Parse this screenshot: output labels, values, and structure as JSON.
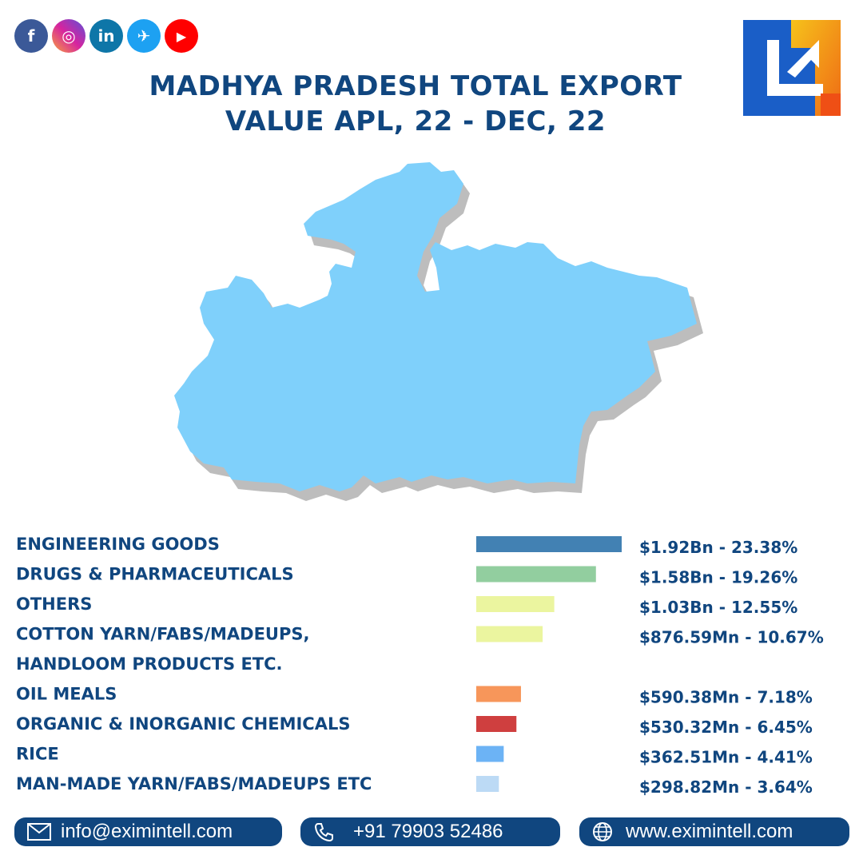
{
  "social": [
    {
      "name": "facebook",
      "glyph": "f",
      "color": "#3b5998"
    },
    {
      "name": "instagram",
      "glyph": "◎",
      "color": "#d6249f"
    },
    {
      "name": "linkedin",
      "glyph": "in",
      "color": "#0e76a8"
    },
    {
      "name": "twitter",
      "glyph": "✈",
      "color": "#1da1f2"
    },
    {
      "name": "youtube",
      "glyph": "▶",
      "color": "#ff0000"
    }
  ],
  "title_line1": "MADHYA PRADESH TOTAL EXPORT",
  "title_line2": "VALUE APL, 22 - DEC, 22",
  "chart_data": {
    "type": "bar",
    "orientation": "horizontal",
    "categories": [
      [
        "ENGINEERING GOODS"
      ],
      [
        "DRUGS & PHARMACEUTICALS"
      ],
      [
        "OTHERS"
      ],
      [
        "COTTON YARN/FABS/MADEUPS,",
        "HANDLOOM PRODUCTS ETC."
      ],
      [
        "OIL MEALS"
      ],
      [
        "ORGANIC & INORGANIC CHEMICALS"
      ],
      [
        "RICE"
      ],
      [
        "MAN-MADE YARN/FABS/MADEUPS ETC"
      ]
    ],
    "values_usd_mn": [
      1920,
      1580,
      1030,
      876.59,
      590.38,
      530.32,
      362.51,
      298.82
    ],
    "percent": [
      23.38,
      19.26,
      12.55,
      10.67,
      7.18,
      6.45,
      4.41,
      3.64
    ],
    "value_labels": [
      "$1.92Bn - 23.38%",
      "$1.58Bn - 19.26%",
      "$1.03Bn - 12.55%",
      "$876.59Mn - 10.67%",
      "$590.38Mn - 7.18%",
      "$530.32Mn - 6.45%",
      "$362.51Mn - 4.41%",
      "$298.82Mn - 3.64%"
    ],
    "colors": [
      "#4281b3",
      "#92ce9f",
      "#ebf59f",
      "#ebf59f",
      "#f7965a",
      "#cf3f3f",
      "#6cb3f5",
      "#bcdaf5"
    ]
  },
  "footer": {
    "email": "info@eximintell.com",
    "phone": "+91  79903 52486",
    "website": "www.eximintell.com"
  },
  "colors": {
    "primary": "#10467f",
    "map_fill": "#7fd0fb",
    "map_shadow": "#bdbdbd"
  }
}
